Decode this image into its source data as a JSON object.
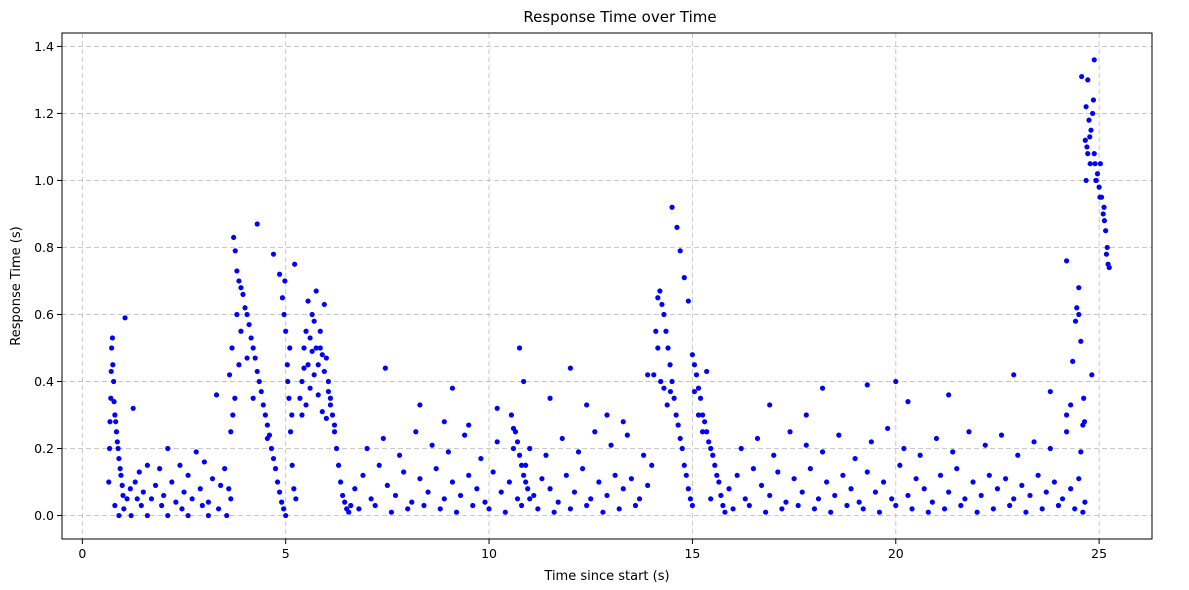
{
  "chart_data": {
    "type": "scatter",
    "title": "Response Time over Time",
    "xlabel": "Time since start (s)",
    "ylabel": "Response Time (s)",
    "xlim": [
      -0.5,
      26.3
    ],
    "ylim": [
      -0.07,
      1.44
    ],
    "xticks": [
      0,
      5,
      10,
      15,
      20,
      25
    ],
    "yticks": [
      0.0,
      0.2,
      0.4,
      0.6,
      0.8,
      1.0,
      1.2,
      1.4
    ],
    "xtick_labels": [
      "0",
      "5",
      "10",
      "15",
      "20",
      "25"
    ],
    "ytick_labels": [
      "0.0",
      "0.2",
      "0.4",
      "0.6",
      "0.8",
      "1.0",
      "1.2",
      "1.4"
    ],
    "grid": true,
    "marker_color": "#0000ff",
    "series": [
      {
        "x": [
          0.65,
          0.67,
          0.68,
          0.7,
          0.71,
          0.72,
          0.74,
          0.75,
          0.77,
          0.78,
          0.8,
          0.82,
          0.84,
          0.86,
          0.88,
          0.9,
          0.93,
          0.95,
          0.98,
          1.0,
          1.05,
          1.1,
          1.18,
          1.25,
          1.3,
          1.35,
          1.4,
          1.5,
          1.6,
          1.7,
          1.8,
          1.9,
          2.0,
          2.1,
          2.2,
          2.3,
          2.4,
          2.5,
          2.6,
          2.7,
          2.8,
          2.9,
          3.0,
          3.1,
          3.2,
          3.3,
          3.4,
          3.5,
          3.6,
          3.65,
          0.9,
          1.2,
          1.6,
          2.1,
          2.6,
          3.1,
          3.55,
          0.8,
          1.02,
          1.45,
          1.95,
          2.45,
          2.95,
          3.35,
          3.62,
          3.68,
          3.72,
          3.76,
          3.8,
          3.85,
          3.9,
          3.95,
          4.0,
          4.05,
          4.1,
          4.15,
          4.2,
          4.25,
          4.3,
          4.35,
          4.4,
          4.45,
          4.5,
          4.55,
          4.6,
          4.65,
          4.7,
          4.75,
          4.8,
          4.85,
          4.9,
          4.95,
          5.0,
          3.7,
          3.75,
          3.8,
          3.9,
          4.05,
          4.3,
          4.55,
          4.7,
          4.85,
          3.65,
          3.85,
          4.2,
          4.92,
          4.96,
          5.0,
          5.04,
          5.08,
          5.12,
          5.16,
          5.2,
          5.25,
          5.05,
          5.1,
          4.98,
          5.15,
          5.22,
          5.35,
          5.4,
          5.45,
          5.5,
          5.55,
          5.6,
          5.65,
          5.7,
          5.75,
          5.8,
          5.85,
          5.9,
          5.95,
          6.0,
          6.05,
          6.1,
          6.15,
          6.2,
          6.25,
          6.3,
          6.35,
          6.4,
          6.45,
          6.5,
          6.55,
          6.6,
          5.4,
          5.5,
          5.6,
          5.7,
          5.8,
          5.9,
          6.0,
          6.1,
          6.2,
          5.45,
          5.65,
          5.85,
          6.05,
          5.55,
          5.75,
          5.95,
          6.7,
          6.9,
          7.1,
          7.3,
          7.5,
          7.7,
          7.9,
          8.1,
          8.3,
          8.5,
          8.7,
          8.9,
          9.1,
          9.3,
          9.5,
          9.7,
          9.9,
          10.1,
          10.3,
          10.5,
          10.7,
          10.9,
          11.1,
          11.3,
          11.5,
          11.7,
          11.9,
          12.1,
          12.3,
          12.5,
          12.7,
          12.9,
          13.1,
          13.3,
          13.5,
          13.7,
          13.9,
          6.8,
          7.2,
          7.6,
          8.0,
          8.4,
          8.8,
          9.2,
          9.6,
          10.0,
          10.4,
          10.8,
          11.2,
          11.6,
          12.0,
          12.4,
          12.8,
          13.2,
          13.6,
          7.0,
          7.4,
          7.8,
          8.2,
          8.6,
          9.0,
          9.4,
          9.8,
          10.2,
          10.6,
          11.0,
          11.4,
          11.8,
          12.2,
          12.6,
          13.0,
          13.4,
          13.8,
          7.45,
          8.3,
          8.9,
          9.1,
          9.5,
          10.2,
          10.55,
          10.75,
          10.85,
          11.5,
          12.0,
          12.4,
          12.9,
          13.3,
          13.9,
          10.6,
          10.65,
          10.7,
          10.75,
          10.8,
          10.85,
          10.9,
          10.95,
          11.0,
          14.0,
          14.05,
          14.1,
          14.15,
          14.2,
          14.25,
          14.3,
          14.35,
          14.4,
          14.45,
          14.5,
          14.55,
          14.6,
          14.65,
          14.7,
          14.75,
          14.8,
          14.85,
          14.9,
          14.95,
          15.0,
          14.15,
          14.22,
          14.3,
          14.38,
          14.46,
          14.5,
          14.62,
          14.7,
          14.8,
          14.9,
          15.0,
          15.05,
          15.1,
          15.15,
          15.2,
          15.25,
          15.3,
          15.35,
          15.4,
          15.45,
          15.5,
          15.55,
          15.6,
          15.65,
          15.7,
          15.75,
          15.8,
          15.05,
          15.15,
          15.25,
          15.35,
          15.45,
          15.9,
          16.1,
          16.3,
          16.5,
          16.7,
          16.9,
          17.1,
          17.3,
          17.5,
          17.7,
          17.9,
          18.1,
          18.3,
          18.5,
          18.7,
          18.9,
          19.1,
          19.3,
          19.5,
          19.7,
          19.9,
          20.1,
          20.3,
          20.5,
          20.7,
          20.9,
          21.1,
          21.3,
          21.5,
          21.7,
          21.9,
          22.1,
          22.3,
          22.5,
          22.7,
          22.9,
          23.1,
          23.3,
          23.5,
          23.7,
          23.9,
          24.1,
          24.3,
          24.5,
          24.65,
          16.0,
          16.4,
          16.8,
          17.2,
          17.6,
          18.0,
          18.4,
          18.8,
          19.2,
          19.6,
          20.0,
          20.4,
          20.8,
          21.2,
          21.6,
          22.0,
          22.4,
          22.8,
          23.2,
          23.6,
          24.0,
          24.4,
          24.6,
          16.2,
          16.6,
          17.0,
          17.4,
          17.8,
          18.2,
          18.6,
          19.0,
          19.4,
          19.8,
          20.2,
          20.6,
          21.0,
          21.4,
          21.8,
          22.2,
          22.6,
          23.0,
          23.4,
          23.8,
          24.2,
          24.55,
          16.9,
          17.8,
          18.2,
          19.3,
          20.0,
          20.3,
          21.3,
          22.9,
          23.8,
          24.2,
          24.2,
          24.35,
          24.45,
          24.5,
          24.55,
          24.6,
          24.62,
          24.64,
          24.66,
          24.68,
          24.7,
          24.72,
          24.75,
          24.78,
          24.8,
          24.82,
          24.84,
          24.86,
          24.88,
          24.9,
          24.93,
          24.96,
          25.0,
          25.03,
          25.06,
          25.1,
          25.13,
          25.16,
          25.2,
          25.22,
          24.3,
          24.42,
          24.5,
          24.57,
          24.68,
          24.72,
          24.77,
          24.88,
          24.92,
          25.02,
          25.12,
          25.18,
          25.25
        ],
        "y": [
          0.1,
          0.2,
          0.28,
          0.35,
          0.43,
          0.5,
          0.53,
          0.45,
          0.4,
          0.34,
          0.3,
          0.28,
          0.25,
          0.22,
          0.2,
          0.17,
          0.14,
          0.12,
          0.09,
          0.06,
          0.59,
          0.05,
          0.08,
          0.32,
          0.1,
          0.05,
          0.13,
          0.07,
          0.15,
          0.05,
          0.09,
          0.14,
          0.06,
          0.2,
          0.1,
          0.04,
          0.15,
          0.07,
          0.12,
          0.05,
          0.19,
          0.08,
          0.16,
          0.04,
          0.11,
          0.36,
          0.09,
          0.14,
          0.08,
          0.05,
          0.0,
          0.0,
          0.0,
          0.0,
          0.0,
          0.0,
          0.0,
          0.03,
          0.02,
          0.03,
          0.03,
          0.02,
          0.03,
          0.02,
          0.42,
          0.5,
          0.83,
          0.79,
          0.73,
          0.7,
          0.68,
          0.66,
          0.62,
          0.6,
          0.57,
          0.53,
          0.5,
          0.47,
          0.43,
          0.4,
          0.37,
          0.33,
          0.3,
          0.27,
          0.24,
          0.2,
          0.17,
          0.14,
          0.1,
          0.07,
          0.04,
          0.02,
          0.0,
          0.3,
          0.35,
          0.6,
          0.55,
          0.47,
          0.87,
          0.23,
          0.78,
          0.72,
          0.25,
          0.45,
          0.35,
          0.65,
          0.6,
          0.55,
          0.45,
          0.35,
          0.25,
          0.15,
          0.08,
          0.05,
          0.4,
          0.5,
          0.7,
          0.3,
          0.75,
          0.35,
          0.4,
          0.5,
          0.55,
          0.45,
          0.53,
          0.6,
          0.58,
          0.5,
          0.45,
          0.55,
          0.48,
          0.43,
          0.47,
          0.4,
          0.35,
          0.3,
          0.25,
          0.2,
          0.15,
          0.1,
          0.06,
          0.04,
          0.02,
          0.01,
          0.03,
          0.3,
          0.33,
          0.38,
          0.42,
          0.36,
          0.31,
          0.29,
          0.33,
          0.27,
          0.44,
          0.49,
          0.5,
          0.37,
          0.64,
          0.67,
          0.63,
          0.08,
          0.12,
          0.05,
          0.15,
          0.09,
          0.06,
          0.13,
          0.04,
          0.11,
          0.07,
          0.14,
          0.05,
          0.1,
          0.06,
          0.12,
          0.08,
          0.04,
          0.13,
          0.07,
          0.1,
          0.05,
          0.15,
          0.06,
          0.11,
          0.08,
          0.04,
          0.12,
          0.07,
          0.14,
          0.05,
          0.1,
          0.06,
          0.12,
          0.08,
          0.11,
          0.05,
          0.09,
          0.02,
          0.03,
          0.01,
          0.02,
          0.03,
          0.02,
          0.01,
          0.03,
          0.02,
          0.01,
          0.03,
          0.02,
          0.01,
          0.02,
          0.03,
          0.01,
          0.02,
          0.03,
          0.2,
          0.23,
          0.18,
          0.25,
          0.21,
          0.19,
          0.24,
          0.17,
          0.22,
          0.26,
          0.2,
          0.18,
          0.23,
          0.19,
          0.25,
          0.21,
          0.24,
          0.18,
          0.44,
          0.33,
          0.28,
          0.38,
          0.27,
          0.32,
          0.3,
          0.5,
          0.4,
          0.35,
          0.44,
          0.33,
          0.3,
          0.28,
          0.42,
          0.2,
          0.25,
          0.22,
          0.18,
          0.15,
          0.12,
          0.1,
          0.08,
          0.05,
          0.15,
          0.42,
          0.55,
          0.65,
          0.67,
          0.63,
          0.6,
          0.55,
          0.5,
          0.45,
          0.4,
          0.35,
          0.3,
          0.27,
          0.23,
          0.2,
          0.15,
          0.12,
          0.08,
          0.05,
          0.03,
          0.5,
          0.4,
          0.38,
          0.33,
          0.37,
          0.92,
          0.86,
          0.79,
          0.71,
          0.64,
          0.48,
          0.45,
          0.42,
          0.38,
          0.35,
          0.3,
          0.28,
          0.25,
          0.22,
          0.2,
          0.18,
          0.15,
          0.12,
          0.1,
          0.06,
          0.03,
          0.01,
          0.37,
          0.3,
          0.25,
          0.43,
          0.05,
          0.08,
          0.12,
          0.05,
          0.14,
          0.09,
          0.06,
          0.13,
          0.04,
          0.11,
          0.07,
          0.14,
          0.05,
          0.1,
          0.06,
          0.12,
          0.08,
          0.04,
          0.13,
          0.07,
          0.1,
          0.05,
          0.15,
          0.06,
          0.11,
          0.08,
          0.04,
          0.12,
          0.07,
          0.14,
          0.05,
          0.1,
          0.06,
          0.12,
          0.08,
          0.11,
          0.05,
          0.09,
          0.06,
          0.12,
          0.07,
          0.1,
          0.05,
          0.08,
          0.11,
          0.04,
          0.02,
          0.03,
          0.01,
          0.02,
          0.03,
          0.02,
          0.01,
          0.03,
          0.02,
          0.01,
          0.03,
          0.02,
          0.01,
          0.02,
          0.03,
          0.01,
          0.02,
          0.03,
          0.01,
          0.02,
          0.03,
          0.02,
          0.01,
          0.2,
          0.23,
          0.18,
          0.25,
          0.21,
          0.19,
          0.24,
          0.17,
          0.22,
          0.26,
          0.2,
          0.18,
          0.23,
          0.19,
          0.25,
          0.21,
          0.24,
          0.18,
          0.22,
          0.2,
          0.25,
          0.19,
          0.33,
          0.3,
          0.38,
          0.39,
          0.4,
          0.34,
          0.36,
          0.42,
          0.37,
          0.3,
          0.76,
          0.46,
          0.62,
          0.68,
          0.52,
          0.27,
          0.35,
          0.28,
          1.12,
          1.22,
          1.1,
          1.3,
          1.18,
          1.05,
          1.15,
          0.42,
          1.2,
          1.24,
          1.08,
          1.05,
          1.0,
          1.02,
          0.98,
          1.05,
          0.95,
          0.9,
          0.88,
          0.85,
          0.8,
          0.75,
          0.33,
          0.58,
          0.6,
          1.31,
          1.0,
          1.08,
          1.13,
          1.36,
          1.0,
          0.95,
          0.92,
          0.78,
          0.74
        ]
      }
    ]
  }
}
